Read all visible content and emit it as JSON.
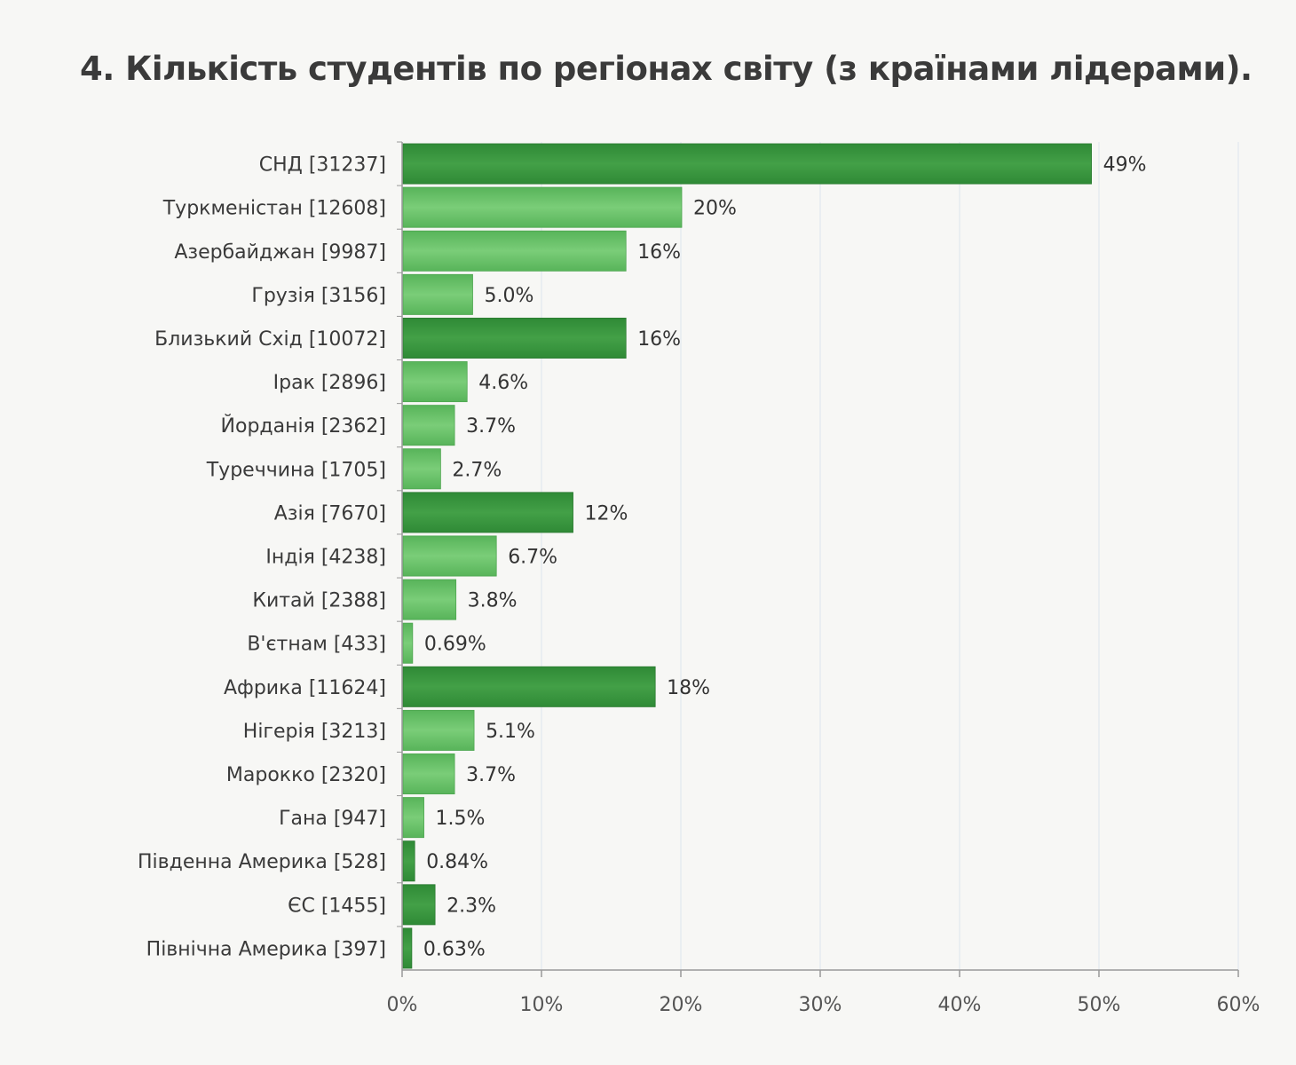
{
  "chart_data": {
    "type": "bar",
    "orientation": "horizontal",
    "title": "4. Кількість студентів по регіонах світу (з країнами лідерами).",
    "categories": [
      "СНД [31237]",
      "Туркменістан [12608]",
      "Азербайджан [9987]",
      "Грузія [3156]",
      "Близький Схід [10072]",
      "Ірак [2896]",
      "Йорданія [2362]",
      "Туреччина [1705]",
      "Азія [7670]",
      "Індія [4238]",
      "Китай [2388]",
      "В'єтнам [433]",
      "Африка [11624]",
      "Нігерія [3213]",
      "Марокко [2320]",
      "Гана [947]",
      "Південна Америка [528]",
      "ЄС [1455]",
      "Північна Америка [397]"
    ],
    "values": [
      49.4,
      20.0,
      16.0,
      5.0,
      16.0,
      4.6,
      3.7,
      2.7,
      12.2,
      6.7,
      3.8,
      0.69,
      18.1,
      5.1,
      3.7,
      1.5,
      0.84,
      2.3,
      0.63
    ],
    "value_labels": [
      "49%",
      "20%",
      "16%",
      "5.0%",
      "16%",
      "4.6%",
      "3.7%",
      "2.7%",
      "12%",
      "6.7%",
      "3.8%",
      "0.69%",
      "18%",
      "5.1%",
      "3.7%",
      "1.5%",
      "0.84%",
      "2.3%",
      "0.63%"
    ],
    "bar_kind": [
      "region",
      "country",
      "country",
      "country",
      "region",
      "country",
      "country",
      "country",
      "region",
      "country",
      "country",
      "country",
      "region",
      "country",
      "country",
      "country",
      "region",
      "region",
      "region"
    ],
    "xlim": [
      0,
      60
    ],
    "xticks": [
      0,
      10,
      20,
      30,
      40,
      50,
      60
    ],
    "xtick_labels": [
      "0%",
      "10%",
      "20%",
      "30%",
      "40%",
      "50%",
      "60%"
    ],
    "xlabel": "",
    "ylabel": "",
    "grid": "vertical",
    "legend": "none",
    "colors": {
      "region": "#43a047",
      "country": "#6cc46c",
      "grid": "#e6ebf0",
      "axis": "#999999"
    }
  }
}
